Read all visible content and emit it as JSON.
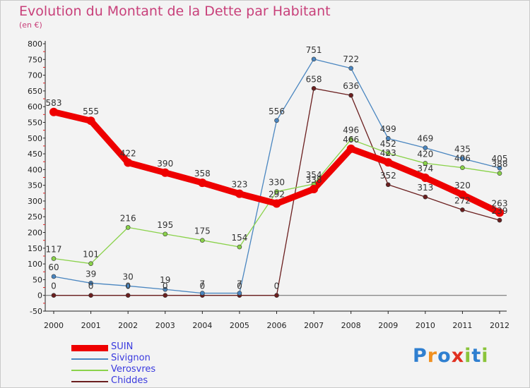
{
  "chart_data": {
    "type": "line",
    "title": "Evolution du Montant de la Dette par Habitant",
    "subtitle": "(en €)",
    "x": [
      "2000",
      "2001",
      "2002",
      "2003",
      "2004",
      "2005",
      "2006",
      "2007",
      "2008",
      "2009",
      "2010",
      "2011",
      "2012"
    ],
    "ylim": [
      -50,
      800
    ],
    "yticks": [
      -50,
      0,
      50,
      100,
      150,
      200,
      250,
      300,
      350,
      400,
      450,
      500,
      550,
      600,
      650,
      700,
      750,
      800
    ],
    "grid": false,
    "legend_position": "bottom-left",
    "series": [
      {
        "name": "SUIN",
        "color": "#ee0000",
        "values": [
          583,
          555,
          422,
          390,
          358,
          323,
          292,
          338,
          466,
          423,
          374,
          320,
          263
        ]
      },
      {
        "name": "Sivignon",
        "color": "#4a86c0",
        "values": [
          60,
          39,
          30,
          19,
          7,
          7,
          556,
          751,
          722,
          499,
          469,
          435,
          405
        ]
      },
      {
        "name": "Verosvres",
        "color": "#8ad24a",
        "values": [
          117,
          101,
          216,
          195,
          175,
          154,
          330,
          354,
          496,
          452,
          420,
          406,
          388
        ]
      },
      {
        "name": "Chiddes",
        "color": "#6b1f1f",
        "values": [
          0,
          0,
          0,
          0,
          0,
          0,
          0,
          658,
          636,
          352,
          313,
          272,
          239
        ]
      }
    ]
  },
  "logo": {
    "text": "Proxiti",
    "letters": [
      {
        "ch": "P",
        "color": "#2f7fd0"
      },
      {
        "ch": "r",
        "color": "#f09020"
      },
      {
        "ch": "o",
        "color": "#2f7fd0"
      },
      {
        "ch": "x",
        "color": "#e03020"
      },
      {
        "ch": "i",
        "color": "#8ac43a"
      },
      {
        "ch": "t",
        "color": "#2f7fd0"
      },
      {
        "ch": "i",
        "color": "#8ac43a"
      }
    ]
  }
}
